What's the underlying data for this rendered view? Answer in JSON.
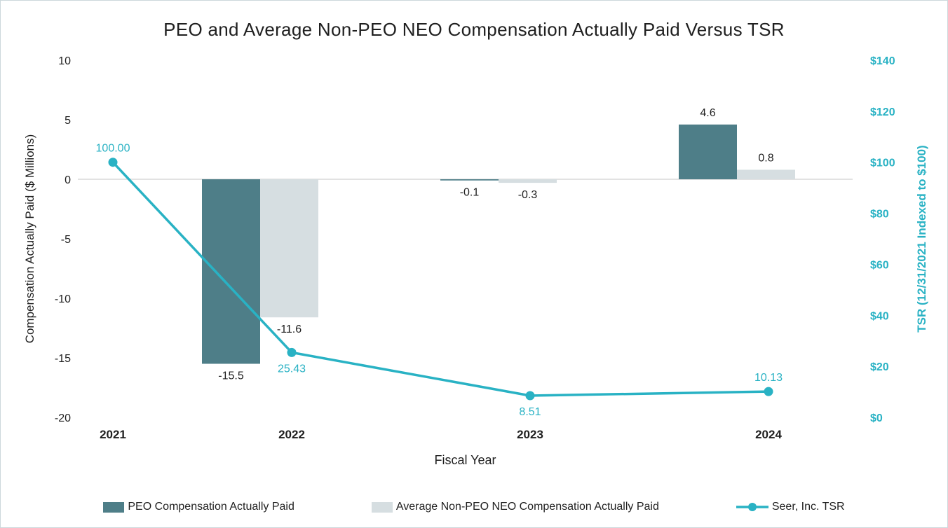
{
  "title": "PEO and Average Non-PEO NEO Compensation Actually Paid Versus TSR",
  "colors": {
    "peo_bar": "#4e7e88",
    "neo_bar": "#d6dee1",
    "tsr_line": "#29b2c4",
    "zero_line": "#d9d9d9",
    "text": "#1f1f1f"
  },
  "legend": [
    {
      "label": "PEO Compensation Actually Paid",
      "type": "bar",
      "color_key": "peo_bar"
    },
    {
      "label": "Average Non-PEO NEO Compensation Actually Paid",
      "type": "bar",
      "color_key": "neo_bar"
    },
    {
      "label": "Seer, Inc. TSR",
      "type": "line",
      "color_key": "tsr_line"
    }
  ],
  "chart_data": {
    "type": "combo_bar_line",
    "categories": [
      "2021",
      "2022",
      "2023",
      "2024"
    ],
    "series": [
      {
        "name": "PEO Compensation Actually Paid",
        "type": "bar",
        "axis": "left",
        "values": [
          null,
          -15.5,
          -0.1,
          4.6
        ],
        "labels": [
          "",
          "-15.5",
          "-0.1",
          "4.6"
        ]
      },
      {
        "name": "Average Non-PEO NEO Compensation Actually Paid",
        "type": "bar",
        "axis": "left",
        "values": [
          null,
          -11.6,
          -0.3,
          0.8
        ],
        "labels": [
          "",
          "-11.6",
          "-0.3",
          "0.8"
        ]
      },
      {
        "name": "Seer, Inc. TSR",
        "type": "line",
        "axis": "right",
        "values": [
          100.0,
          25.43,
          8.51,
          10.13
        ],
        "labels": [
          "100.00",
          "25.43",
          "8.51",
          "10.13"
        ],
        "label_side": [
          "above",
          "below",
          "below",
          "above"
        ]
      }
    ],
    "left_axis": {
      "label": "Compensation Actually Paid ($ Millions)",
      "min": -20,
      "max": 10,
      "step": 5,
      "ticks": [
        "10",
        "5",
        "0",
        "-5",
        "-10",
        "-15",
        "-20"
      ]
    },
    "right_axis": {
      "label": "TSR (12/31/2021 Indexed to $100)",
      "min": 0,
      "max": 140,
      "step": 20,
      "ticks": [
        "$140",
        "$120",
        "$100",
        "$80",
        "$60",
        "$40",
        "$20",
        "$0"
      ]
    },
    "xlabel": "Fiscal Year",
    "grid": false,
    "legend_position": "bottom"
  }
}
